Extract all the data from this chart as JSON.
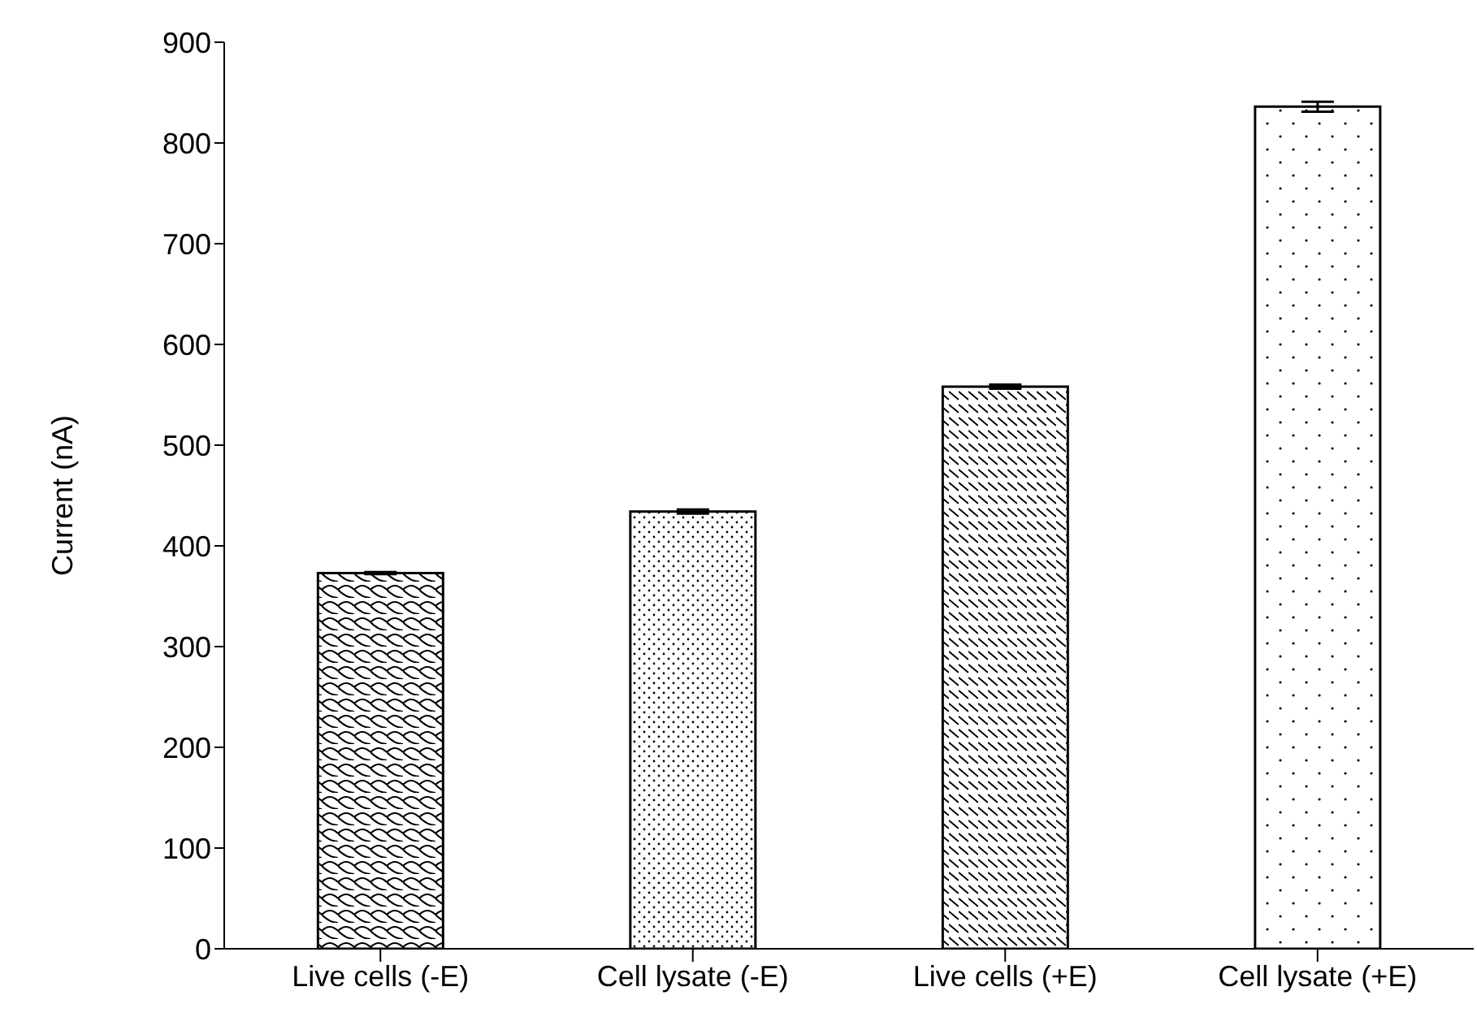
{
  "chart_data": {
    "type": "bar",
    "ylabel": "Current (nA)",
    "categories": [
      "Live cells (-E)",
      "Cell lysate (-E)",
      "Live cells (+E)",
      "Cell lysate (+E)"
    ],
    "values": [
      373,
      434,
      558,
      836
    ],
    "errors": [
      1,
      2,
      2,
      5
    ],
    "color": "#000000",
    "ylim": [
      0,
      900
    ],
    "yticks": [
      0,
      100,
      200,
      300,
      400,
      500,
      600,
      700,
      800,
      900
    ],
    "grid": false,
    "legend": false
  }
}
